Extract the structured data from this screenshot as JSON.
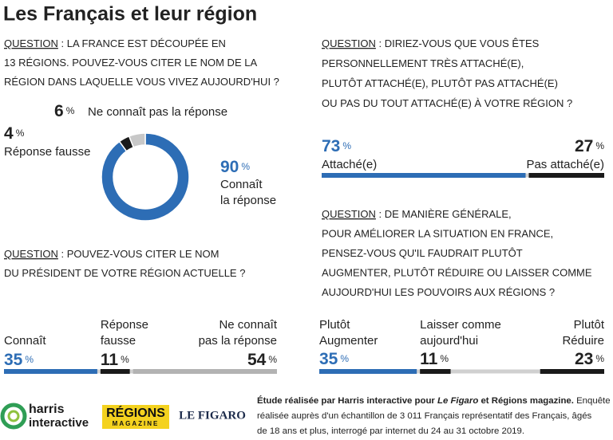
{
  "title": "Les Français et leur région",
  "unit": "%",
  "question_label": "QUESTION",
  "chart_data": [
    {
      "type": "donut",
      "question": [
        " : LA FRANCE EST DÉCOUPÉE EN",
        "13 RÉGIONS. POUVEZ-VOUS CITER LE NOM DE LA",
        "RÉGION DANS LAQUELLE VOUS VIVEZ AUJOURD'HUI ?"
      ],
      "categories": [
        [
          "Connaît",
          "la réponse"
        ],
        [
          "Réponse fausse"
        ],
        [
          "Ne connaît pas la réponse"
        ]
      ],
      "values": [
        90,
        4,
        6
      ],
      "colors": [
        "#2d6db5",
        "#1a1a1a",
        "#c8c8c8"
      ]
    },
    {
      "type": "stacked-bar",
      "question": [
        " : POUVEZ-VOUS CITER LE NOM",
        "DU PRÉSIDENT DE VOTRE RÉGION ACTUELLE ?"
      ],
      "categories": [
        [
          "Connaît"
        ],
        [
          "Réponse",
          "fausse"
        ],
        [
          "Ne connaît",
          "pas la réponse"
        ]
      ],
      "values": [
        35,
        11,
        54
      ],
      "colors": [
        "#2d6db5",
        "#1a1a1a",
        "#b3b3b3"
      ]
    },
    {
      "type": "stacked-bar",
      "question": [
        " : DIRIEZ-VOUS QUE VOUS ÊTES",
        "PERSONNELLEMENT TRÈS ATTACHÉ(E),",
        "PLUTÔT ATTACHÉ(E), PLUTÔT PAS ATTACHÉ(E)",
        "OU PAS DU TOUT ATTACHÉ(E) À VOTRE RÉGION ?"
      ],
      "categories": [
        [
          "Attaché(e)"
        ],
        [
          "Pas attaché(e)"
        ]
      ],
      "values": [
        73,
        27
      ],
      "colors": [
        "#2d6db5",
        "#1a1a1a"
      ]
    },
    {
      "type": "stacked-bar",
      "question": [
        " : DE MANIÈRE GÉNÉRALE,",
        "POUR AMÉLIORER LA SITUATION EN FRANCE,",
        "PENSEZ-VOUS QU'IL FAUDRAIT PLUTÔT",
        "AUGMENTER, PLUTÔT RÉDUIRE OU LAISSER COMME",
        "AUJOURD'HUI LES POUVOIRS AUX RÉGIONS ?"
      ],
      "categories": [
        [
          "Plutôt",
          "Augmenter"
        ],
        [
          "Laisser comme",
          "aujourd'hui"
        ],
        [
          "Plutôt",
          "Réduire"
        ]
      ],
      "values": [
        35,
        11,
        23
      ],
      "colors": [
        "#2d6db5",
        "#1a1a1a",
        "#1a1a1a"
      ]
    }
  ],
  "logos": {
    "harris": "harris",
    "interactive": "interactive",
    "regions": "RÉGIONS",
    "magazine": "MAGAZINE",
    "figaro": "LE FIGARO"
  },
  "footer": {
    "bold1": "Étude réalisée par Harris interactive pour ",
    "italic": "Le Figaro",
    "bold2": " et Régions magazine.",
    "line1": " Enquête",
    "line2": "réalisée auprès d'un échantillon de 3 011 Français représentatif des Français, âgés",
    "line3": "de 18 ans et plus, interrogé par internet du 24 au 31 octobre 2019."
  }
}
